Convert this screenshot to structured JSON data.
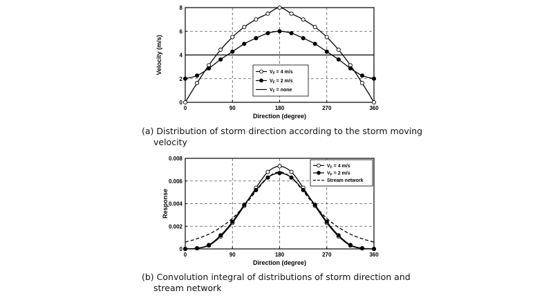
{
  "chart_data": [
    {
      "type": "line",
      "xlabel": "Direction (degree)",
      "ylabel": "Velocity (m/s)",
      "xlim": [
        0,
        360
      ],
      "ylim": [
        0,
        8
      ],
      "xticks": [
        "0",
        "90",
        "180",
        "270",
        "360"
      ],
      "yticks": [
        "0",
        "2",
        "4",
        "6",
        "8"
      ],
      "grid": true,
      "legend_position": "bottom-center",
      "x": [
        0,
        22.5,
        45,
        67.5,
        90,
        112.5,
        135,
        157.5,
        180,
        202.5,
        225,
        247.5,
        270,
        292.5,
        315,
        337.5,
        360
      ],
      "series": [
        {
          "name": "V_F = 4 m/s",
          "marker": "open-circle",
          "values": [
            0,
            1.63,
            3.13,
            4.44,
            5.51,
            6.36,
            7.0,
            7.49,
            8.0,
            7.49,
            7.0,
            6.36,
            5.51,
            4.44,
            3.13,
            1.63,
            0
          ]
        },
        {
          "name": "V_F = 2 m/s",
          "marker": "filled-circle",
          "values": [
            2.0,
            2.26,
            2.87,
            3.62,
            4.28,
            4.94,
            5.42,
            5.84,
            6.0,
            5.84,
            5.42,
            4.94,
            4.28,
            3.62,
            2.87,
            2.26,
            2.0
          ]
        },
        {
          "name": "V_F = none",
          "marker": "none",
          "values": [
            4,
            4,
            4,
            4,
            4,
            4,
            4,
            4,
            4,
            4,
            4,
            4,
            4,
            4,
            4,
            4,
            4
          ]
        }
      ]
    },
    {
      "type": "line",
      "xlabel": "Direction (degree)",
      "ylabel": "Response",
      "xlim": [
        0,
        360
      ],
      "ylim": [
        0,
        0.008
      ],
      "xticks": [
        "0",
        "90",
        "180",
        "270",
        "360"
      ],
      "yticks": [
        "0",
        "0.002",
        "0.004",
        "0.006",
        "0.008"
      ],
      "grid": true,
      "legend_position": "top-right",
      "x": [
        0,
        22.5,
        45,
        67.5,
        90,
        112.5,
        135,
        157.5,
        180,
        202.5,
        225,
        247.5,
        270,
        292.5,
        315,
        337.5,
        360
      ],
      "series": [
        {
          "name": "V_F = 4 m/s",
          "marker": "open-circle",
          "values": [
            0,
            5e-05,
            0.0003,
            0.0011,
            0.0023,
            0.0038,
            0.0054,
            0.0068,
            0.0073,
            0.0068,
            0.0054,
            0.0038,
            0.0023,
            0.0011,
            0.0003,
            5e-05,
            0
          ]
        },
        {
          "name": "V_F = 2 m/s",
          "marker": "filled-circle",
          "values": [
            0,
            6e-05,
            0.00035,
            0.0012,
            0.0024,
            0.0039,
            0.0052,
            0.0063,
            0.0067,
            0.0063,
            0.0052,
            0.0039,
            0.0024,
            0.0012,
            0.00035,
            6e-05,
            0
          ]
        },
        {
          "name": "Stream network",
          "marker": "none",
          "dash": true,
          "values": [
            0.0006,
            0.0009,
            0.0013,
            0.0019,
            0.0027,
            0.0038,
            0.0051,
            0.0063,
            0.0068,
            0.0063,
            0.0051,
            0.0038,
            0.0027,
            0.0019,
            0.0013,
            0.0009,
            0.0006
          ]
        }
      ]
    }
  ],
  "captions": {
    "a_line1": "(a) Distribution of storm direction according to the storm moving",
    "a_line2": "velocity",
    "b_line1": "(b) Convolution integral of distributions of storm direction and",
    "b_line2": "stream network"
  }
}
